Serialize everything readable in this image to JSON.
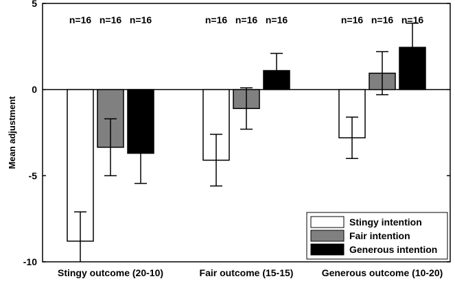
{
  "chart_data": {
    "type": "bar",
    "title": "",
    "xlabel": "",
    "ylabel": "Mean adjustment",
    "ylim": [
      -10,
      5
    ],
    "yticks": [
      -10,
      -5,
      0,
      5
    ],
    "ytick_labels": [
      "-10",
      "-5",
      "0",
      "5"
    ],
    "categories": [
      "Stingy outcome (20-10)",
      "Fair outcome (15-15)",
      "Generous outcome (10-20)"
    ],
    "series": [
      {
        "name": "Stingy intention",
        "color": "#ffffff",
        "values": [
          -8.8,
          -4.1,
          -2.8
        ],
        "errors": [
          1.7,
          1.5,
          1.2
        ],
        "n_labels": [
          "n=16",
          "n=16",
          "n=16"
        ]
      },
      {
        "name": "Fair intention",
        "color": "#808080",
        "values": [
          -3.35,
          -1.1,
          0.95
        ],
        "errors": [
          1.65,
          1.2,
          1.25
        ],
        "n_labels": [
          "n=16",
          "n=16",
          "n=16"
        ]
      },
      {
        "name": "Generous intention",
        "color": "#000000",
        "values": [
          -3.7,
          1.1,
          2.45
        ],
        "errors": [
          1.75,
          1.0,
          1.4
        ],
        "n_labels": [
          "n=16",
          "n=16",
          "n=16"
        ]
      }
    ],
    "legend_position": "bottom-right",
    "grid": false,
    "zero_line": true
  }
}
